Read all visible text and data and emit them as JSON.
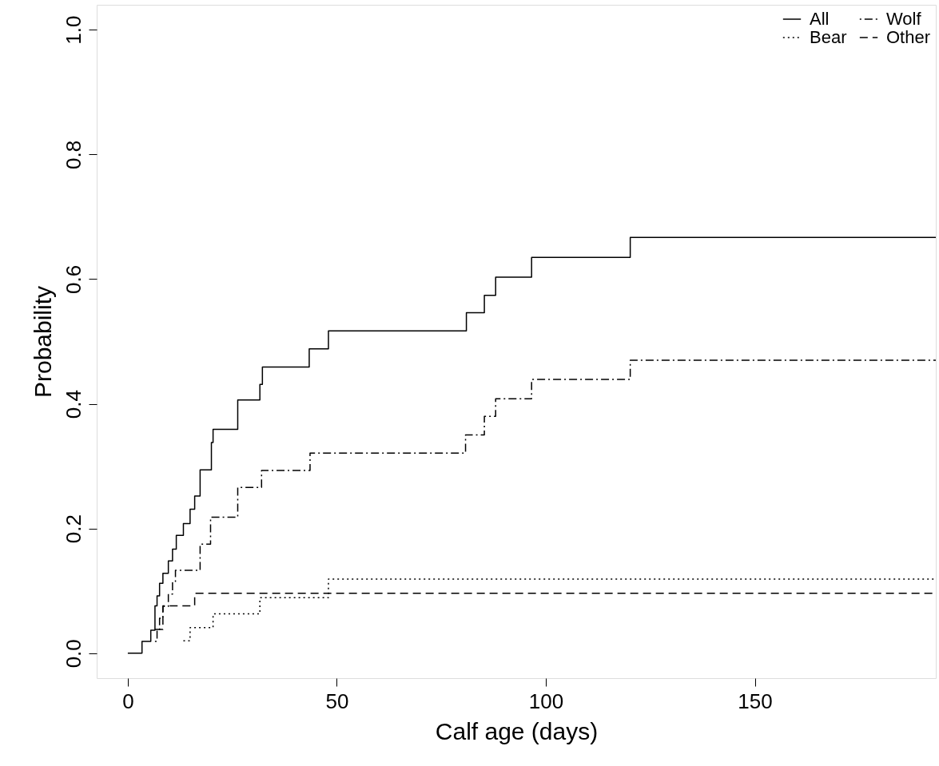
{
  "chart_data": {
    "type": "step",
    "xlabel": "Calf age (days)",
    "ylabel": "Probability",
    "xlim": [
      -7.44,
      193.3
    ],
    "ylim": [
      -0.04,
      1.04
    ],
    "xticks": [
      0,
      50,
      100,
      150
    ],
    "yticks": [
      {
        "value": 0,
        "label": "0.0"
      },
      {
        "value": 0.2,
        "label": "0.2"
      },
      {
        "value": 0.4,
        "label": "0.4"
      },
      {
        "value": 0.6,
        "label": "0.6"
      },
      {
        "value": 0.8,
        "label": "0.8"
      },
      {
        "value": 1,
        "label": "1.0"
      }
    ],
    "grid": false,
    "legend": "top right",
    "marker": "none",
    "series": [
      {
        "name": "All",
        "color": "#000000",
        "line_style": "solid",
        "x": [
          0,
          3.4,
          5.5,
          6.5,
          7.0,
          7.6,
          8.4,
          9.7,
          10.7,
          11.6,
          13.3,
          14.9,
          16.0,
          17.3,
          20.0,
          20.4,
          26.3,
          31.6,
          32.2,
          43.4,
          48.0,
          81.0,
          85.3,
          88.0,
          96.6,
          120.2,
          193.3
        ],
        "values": [
          0,
          0.019,
          0.037,
          0.076,
          0.092,
          0.112,
          0.128,
          0.148,
          0.167,
          0.189,
          0.208,
          0.231,
          0.252,
          0.294,
          0.338,
          0.359,
          0.406,
          0.431,
          0.459,
          0.488,
          0.517,
          0.546,
          0.574,
          0.603,
          0.635,
          0.667,
          0.667
        ]
      },
      {
        "name": "Wolf",
        "color": "#000000",
        "line_style": "dashdot",
        "x": [
          6.5,
          7.0,
          7.6,
          8.4,
          9.7,
          10.7,
          11.4,
          17.3,
          19.8,
          26.3,
          32.0,
          43.6,
          80.8,
          85.3,
          88.0,
          96.6,
          120.2,
          193.3
        ],
        "values": [
          0.019,
          0.037,
          0.056,
          0.075,
          0.095,
          0.114,
          0.133,
          0.175,
          0.218,
          0.266,
          0.293,
          0.321,
          0.35,
          0.38,
          0.408,
          0.439,
          0.47,
          0.47
        ]
      },
      {
        "name": "Bear",
        "color": "#000000",
        "line_style": "dotted",
        "x": [
          13.3,
          14.9,
          20.4,
          31.6,
          48.0,
          193.3
        ],
        "values": [
          0.02,
          0.041,
          0.063,
          0.089,
          0.119,
          0.119
        ]
      },
      {
        "name": "Other",
        "color": "#000000",
        "line_style": "dashed",
        "x": [
          6.5,
          8.4,
          16.0,
          193.3
        ],
        "values": [
          0.038,
          0.076,
          0.096,
          0.096
        ]
      }
    ]
  }
}
